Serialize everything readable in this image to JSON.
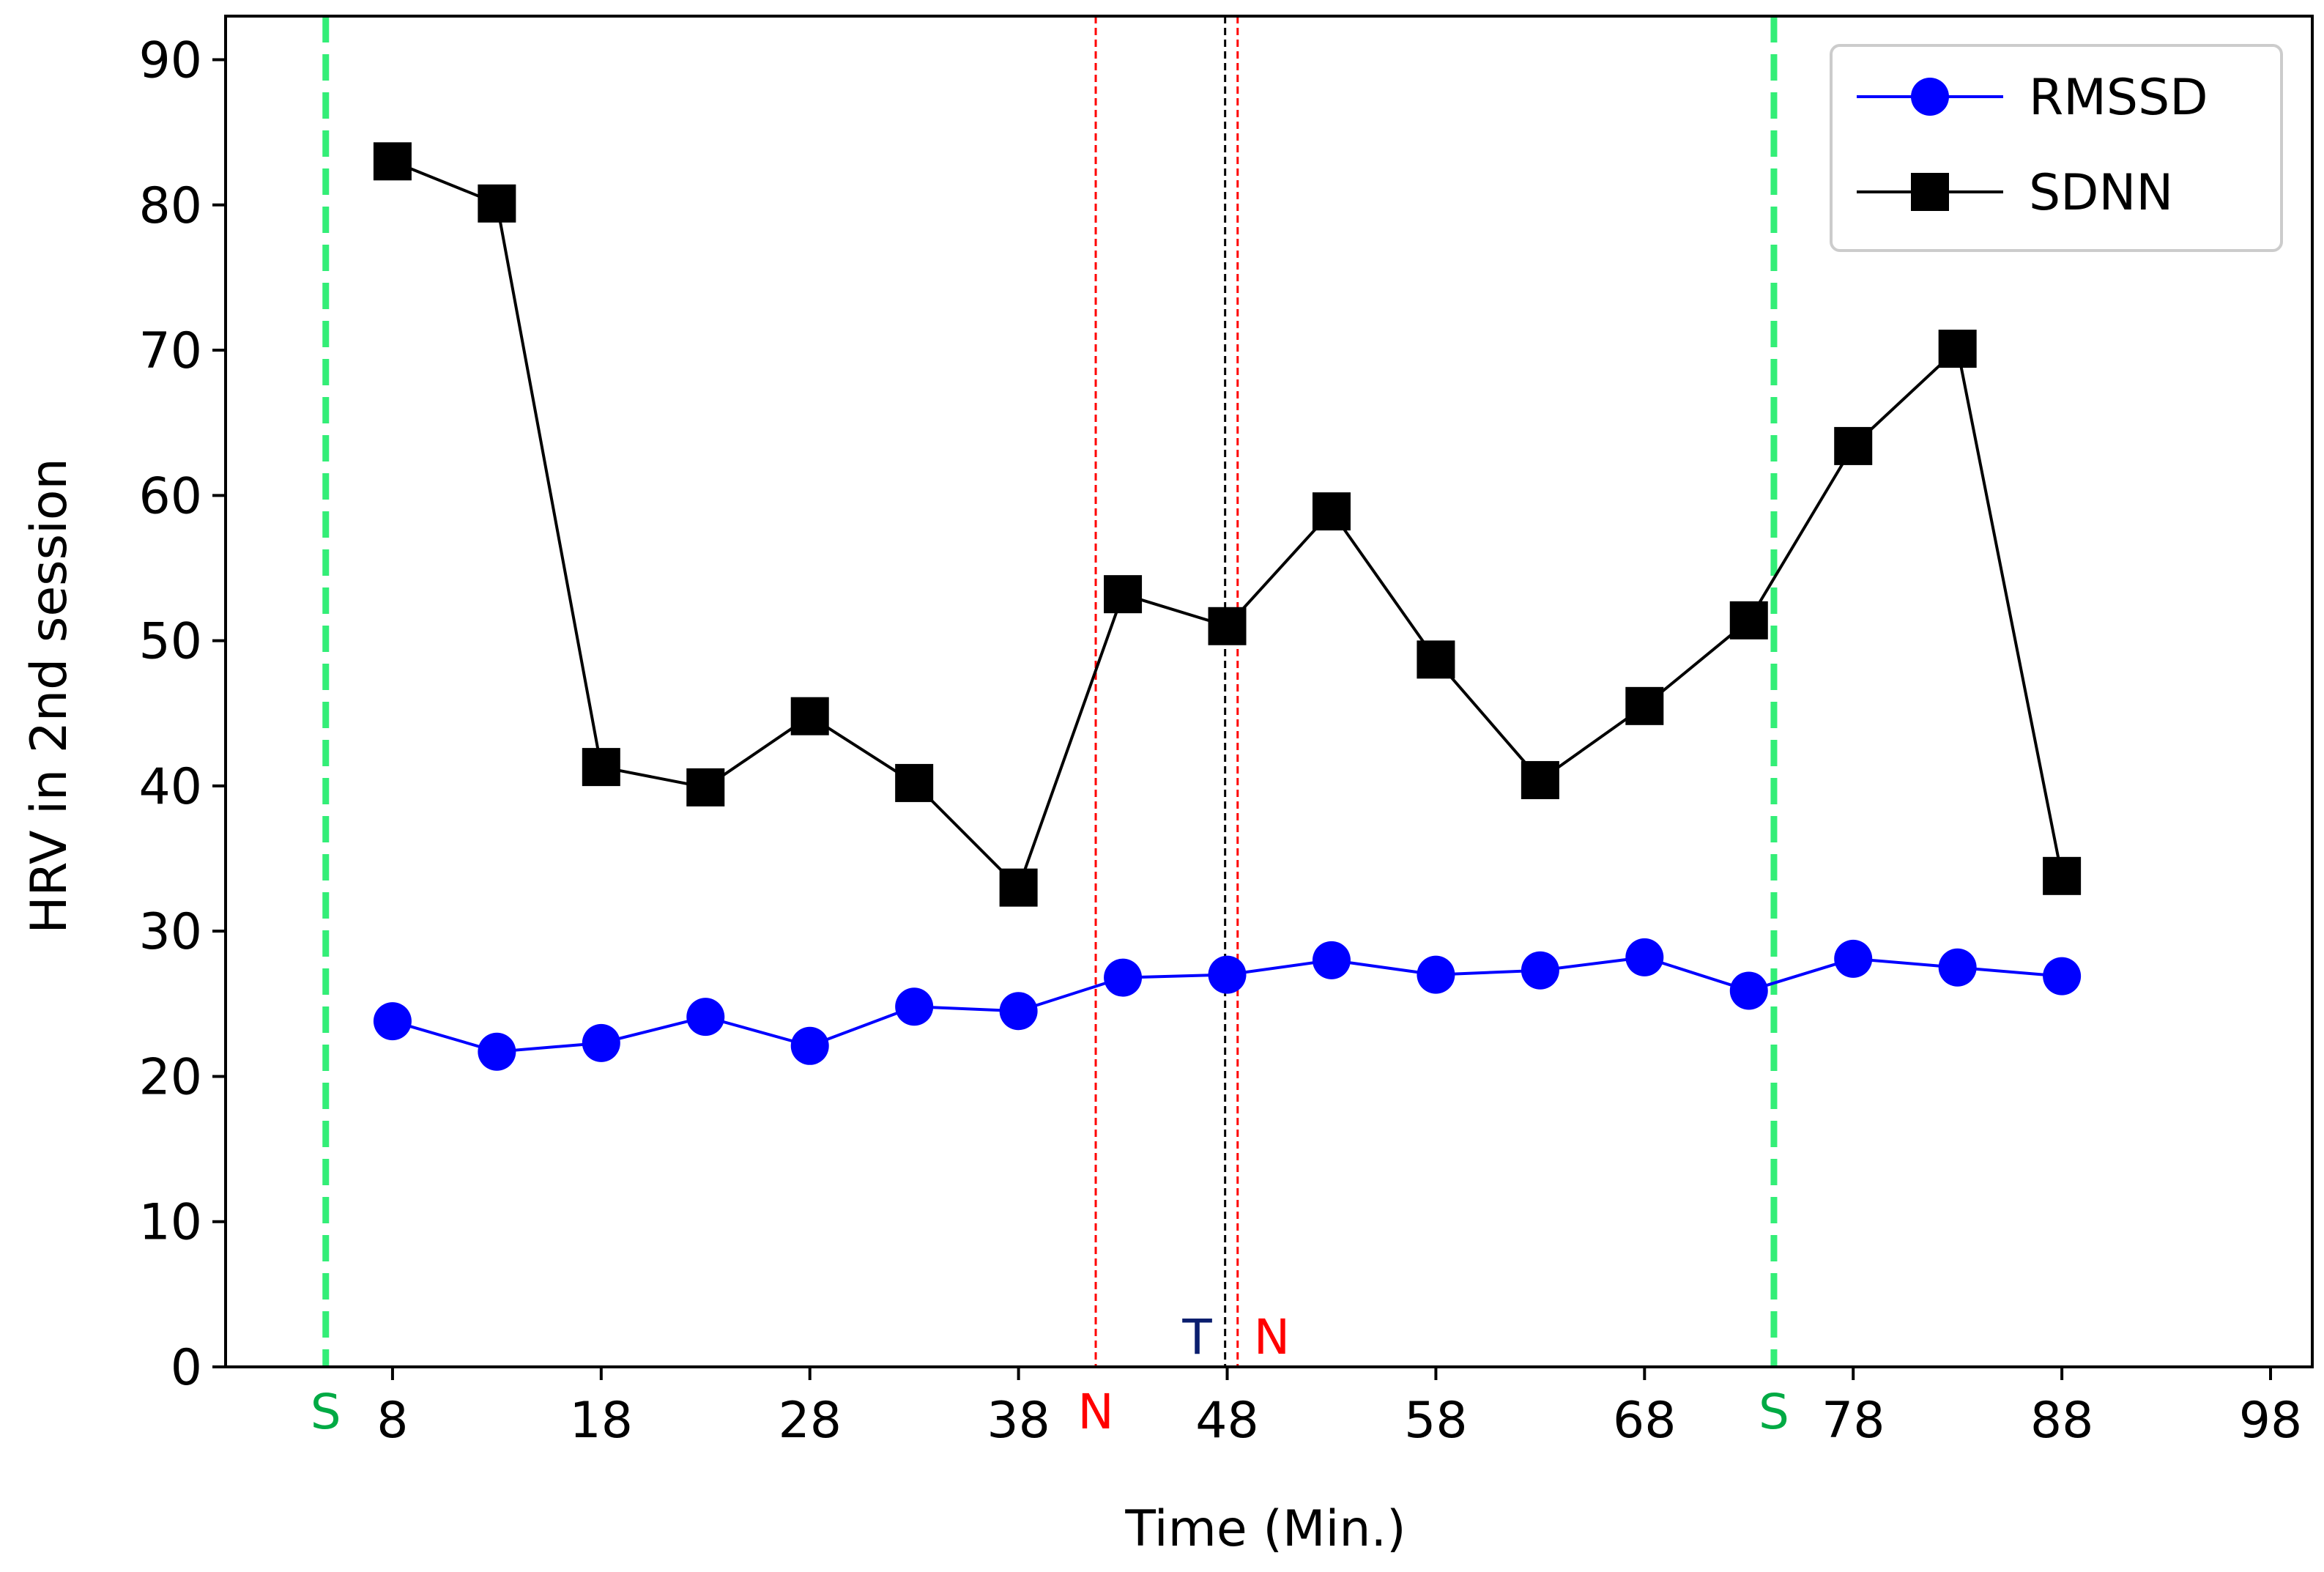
{
  "chart_data": {
    "type": "line",
    "xlabel": "Time (Min.)",
    "ylabel": "HRV in 2nd session",
    "xlim": [
      0,
      100
    ],
    "ylim": [
      0,
      93
    ],
    "xticks": [
      8,
      18,
      28,
      38,
      48,
      58,
      68,
      78,
      88,
      98
    ],
    "yticks": [
      0,
      10,
      20,
      30,
      40,
      50,
      60,
      70,
      80,
      90
    ],
    "x": [
      8,
      13,
      18,
      23,
      28,
      33,
      38,
      43,
      48,
      53,
      58,
      63,
      68,
      73,
      78,
      83,
      88
    ],
    "series": [
      {
        "name": "RMSSD",
        "color": "#0000ff",
        "marker": "circle",
        "values": [
          23.8,
          21.7,
          22.3,
          24.1,
          22.1,
          24.8,
          24.5,
          26.8,
          27.0,
          28.0,
          27.0,
          27.3,
          28.2,
          25.9,
          28.1,
          27.5,
          26.9
        ]
      },
      {
        "name": "SDNN",
        "color": "#000000",
        "marker": "square",
        "values": [
          83.0,
          80.1,
          41.3,
          39.9,
          44.8,
          40.2,
          33.0,
          53.2,
          51.0,
          58.9,
          48.7,
          40.4,
          45.5,
          51.4,
          63.4,
          70.1,
          33.8
        ]
      }
    ],
    "legend": {
      "position": "top-right",
      "entries": [
        "RMSSD",
        "SDNN"
      ]
    },
    "event_lines": [
      {
        "x": 4.8,
        "label": "S",
        "color": "#33ee77",
        "label_color": "#00aa44",
        "style": "dashed-thick",
        "label_placement": "below-axis"
      },
      {
        "x": 74.2,
        "label": "S",
        "color": "#33ee77",
        "label_color": "#00aa44",
        "style": "dashed-thick",
        "label_placement": "below-axis"
      },
      {
        "x": 41.7,
        "label": "N",
        "color": "#ff0000",
        "label_color": "#ff0000",
        "style": "dashed-thin",
        "label_placement": "below-axis"
      },
      {
        "x": 48.5,
        "label": "N",
        "color": "#ff0000",
        "label_color": "#ff0000",
        "style": "dashed-thin",
        "label_placement": "above-axis-right"
      },
      {
        "x": 47.9,
        "label": "T",
        "color": "#000000",
        "label_color": "#0a1e6e",
        "style": "dashed-thin",
        "label_placement": "above-axis-left"
      }
    ]
  }
}
